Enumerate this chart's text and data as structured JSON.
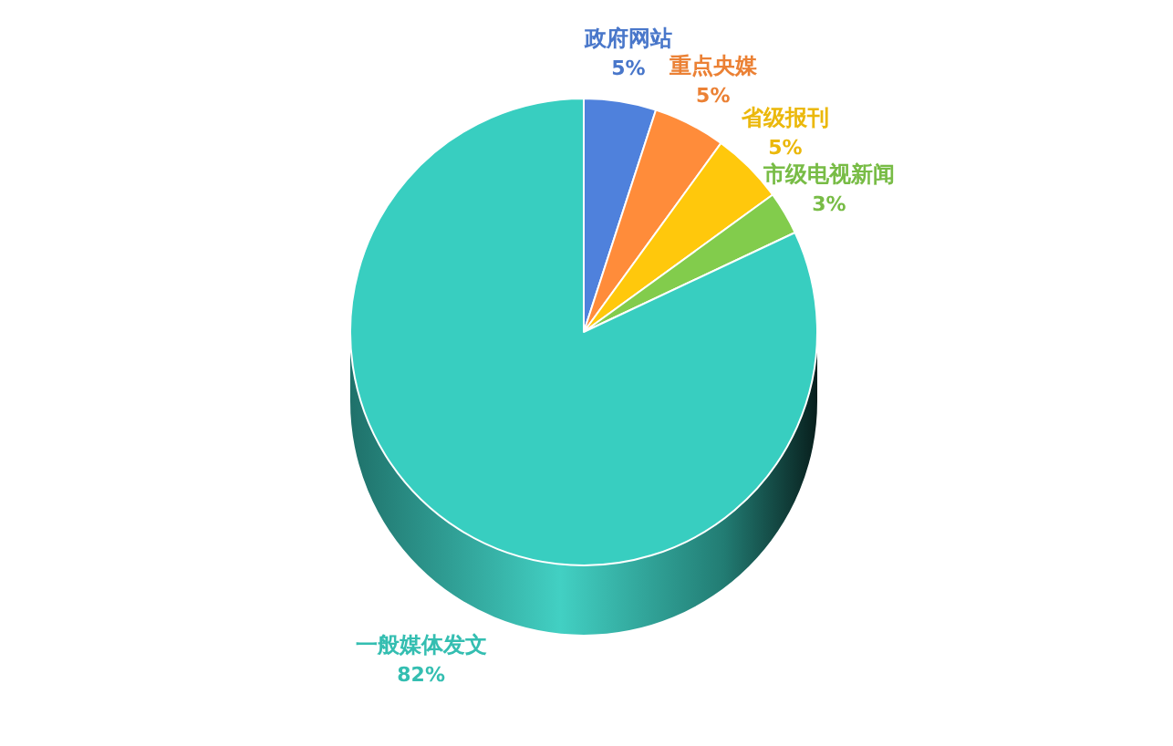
{
  "chart_data": {
    "type": "pie",
    "categories": [
      "政府网站",
      "重点央媒",
      "省级报刊",
      "市级电视新闻",
      "一般媒体发文"
    ],
    "values": [
      5,
      5,
      5,
      3,
      82
    ],
    "colors": [
      "#4f81dc",
      "#ff8c3a",
      "#ffc80c",
      "#82cc4c",
      "#38cec0"
    ],
    "value_labels": [
      "5%",
      "5%",
      "5%",
      "3%",
      "82%"
    ]
  }
}
